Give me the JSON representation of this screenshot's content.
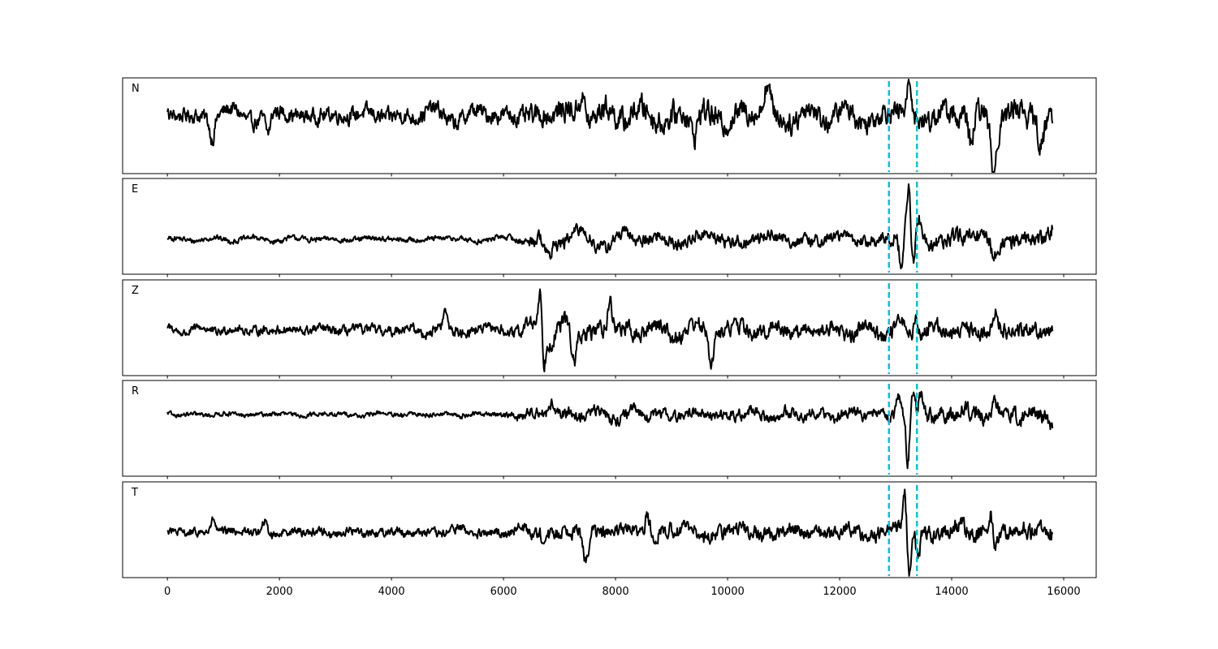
{
  "chart_data": {
    "type": "line",
    "x_range": [
      0,
      15800
    ],
    "xlim": [
      -800,
      16580
    ],
    "x_ticks": [
      0,
      2000,
      4000,
      6000,
      8000,
      10000,
      12000,
      14000,
      16000
    ],
    "x_tick_labels": [
      "0",
      "2000",
      "4000",
      "6000",
      "8000",
      "10000",
      "12000",
      "14000",
      "16000"
    ],
    "marker_lines": [
      12880,
      13380
    ],
    "colors": {
      "trace": "#000000",
      "marker": "#17becf"
    },
    "panels": [
      {
        "label": "N",
        "ylim": [
          -1.0,
          1.0
        ],
        "envelope": [
          [
            0,
            0.25
          ],
          [
            1000,
            0.3
          ],
          [
            2000,
            0.28
          ],
          [
            4000,
            0.3
          ],
          [
            6000,
            0.32
          ],
          [
            7000,
            0.42
          ],
          [
            8000,
            0.45
          ],
          [
            10000,
            0.45
          ],
          [
            12000,
            0.4
          ],
          [
            13000,
            0.4
          ],
          [
            14000,
            0.45
          ],
          [
            15800,
            0.45
          ]
        ],
        "features": [
          [
            800,
            -0.45,
            60
          ],
          [
            1800,
            -0.42,
            60
          ],
          [
            7400,
            0.55,
            80
          ],
          [
            9400,
            -0.5,
            80
          ],
          [
            10700,
            0.6,
            80
          ],
          [
            13250,
            0.65,
            60
          ],
          [
            14350,
            -0.7,
            70
          ],
          [
            14750,
            -1.05,
            60
          ],
          [
            15600,
            -0.65,
            70
          ]
        ]
      },
      {
        "label": "E",
        "ylim": [
          -1.0,
          1.0
        ],
        "envelope": [
          [
            0,
            0.1
          ],
          [
            6000,
            0.1
          ],
          [
            6400,
            0.15
          ],
          [
            6500,
            0.25
          ],
          [
            7500,
            0.25
          ],
          [
            12500,
            0.22
          ],
          [
            12900,
            0.3
          ],
          [
            13500,
            0.3
          ],
          [
            15800,
            0.3
          ]
        ],
        "features": [
          [
            6800,
            -0.38,
            70
          ],
          [
            13100,
            -0.55,
            50
          ],
          [
            13230,
            1.05,
            45
          ],
          [
            13310,
            -0.6,
            45
          ],
          [
            13420,
            0.4,
            50
          ],
          [
            14760,
            -0.38,
            60
          ],
          [
            15800,
            0.2,
            40
          ]
        ]
      },
      {
        "label": "Z",
        "ylim": [
          -1.0,
          1.0
        ],
        "envelope": [
          [
            0,
            0.15
          ],
          [
            3000,
            0.18
          ],
          [
            6000,
            0.2
          ],
          [
            6600,
            0.3
          ],
          [
            7000,
            0.35
          ],
          [
            8000,
            0.3
          ],
          [
            12000,
            0.28
          ],
          [
            15800,
            0.3
          ]
        ],
        "features": [
          [
            4960,
            0.32,
            50
          ],
          [
            6650,
            0.9,
            45
          ],
          [
            6720,
            -0.6,
            45
          ],
          [
            7260,
            -0.8,
            60
          ],
          [
            7900,
            0.55,
            60
          ],
          [
            9700,
            -0.55,
            60
          ],
          [
            13380,
            0.35,
            50
          ],
          [
            14780,
            0.4,
            50
          ]
        ]
      },
      {
        "label": "R",
        "ylim": [
          -1.0,
          1.0
        ],
        "envelope": [
          [
            0,
            0.08
          ],
          [
            6000,
            0.09
          ],
          [
            6400,
            0.2
          ],
          [
            7000,
            0.22
          ],
          [
            12500,
            0.2
          ],
          [
            12900,
            0.25
          ],
          [
            13500,
            0.3
          ],
          [
            15800,
            0.3
          ]
        ],
        "features": [
          [
            6850,
            0.3,
            60
          ],
          [
            13050,
            0.35,
            50
          ],
          [
            13220,
            -1.1,
            45
          ],
          [
            13300,
            0.55,
            45
          ],
          [
            13450,
            0.45,
            50
          ],
          [
            14760,
            0.38,
            60
          ],
          [
            15800,
            -0.25,
            50
          ]
        ]
      },
      {
        "label": "T",
        "ylim": [
          -1.0,
          1.0
        ],
        "envelope": [
          [
            0,
            0.15
          ],
          [
            6000,
            0.18
          ],
          [
            6600,
            0.25
          ],
          [
            7500,
            0.28
          ],
          [
            12500,
            0.25
          ],
          [
            13000,
            0.3
          ],
          [
            13600,
            0.32
          ],
          [
            15800,
            0.32
          ]
        ],
        "features": [
          [
            820,
            0.28,
            50
          ],
          [
            1740,
            0.25,
            50
          ],
          [
            7470,
            -0.55,
            60
          ],
          [
            8560,
            0.4,
            60
          ],
          [
            13160,
            0.95,
            45
          ],
          [
            13240,
            -0.85,
            45
          ],
          [
            13400,
            -0.5,
            50
          ],
          [
            14750,
            -0.55,
            60
          ],
          [
            14710,
            0.65,
            60
          ]
        ]
      }
    ]
  }
}
